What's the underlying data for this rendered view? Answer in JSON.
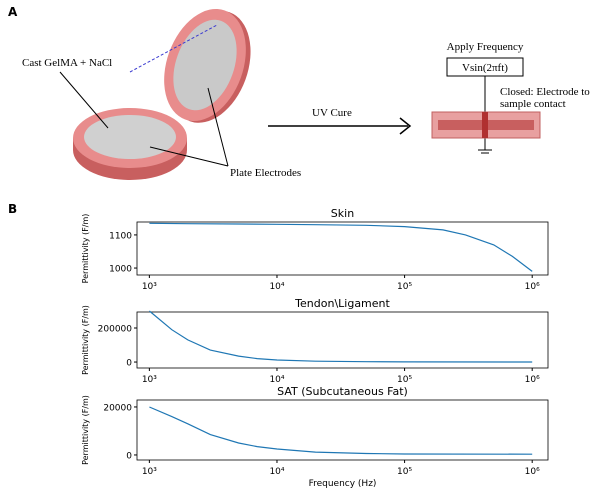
{
  "panel_a": {
    "label": "A",
    "sample_label": "Cast GelMA + NaCl",
    "electrode_label": "Plate Electrodes",
    "process_label": "UV Cure",
    "source_label": "Apply Frequency",
    "source_formula": "Vsin(2πft)",
    "contact_label_lines": [
      "Closed: Electrode to",
      "sample contact"
    ]
  },
  "panel_b": {
    "label": "B"
  },
  "chart_data": [
    {
      "type": "line",
      "title": "Skin",
      "y_label": "Permittivity (F/m)",
      "log_x": true,
      "x": [
        1000,
        2000,
        5000,
        10000,
        20000,
        50000,
        100000,
        200000,
        300000,
        500000,
        700000,
        1000000
      ],
      "series": [
        {
          "color": "#1f77b4",
          "values": [
            1135,
            1134,
            1133,
            1132,
            1131,
            1129,
            1125,
            1115,
            1100,
            1070,
            1035,
            990
          ]
        }
      ],
      "xlim": [
        800,
        1330000
      ],
      "ylim": [
        979,
        1139
      ],
      "xticks": [
        {
          "value": 1000,
          "label": "10³"
        },
        {
          "value": 10000,
          "label": "10⁴"
        },
        {
          "value": 100000,
          "label": "10⁵"
        },
        {
          "value": 1000000,
          "label": "10⁶"
        }
      ],
      "yticks": [
        1000,
        1100
      ]
    },
    {
      "type": "line",
      "title": "Tendon\\Ligament",
      "y_label": "Permittivity (F/m)",
      "log_x": true,
      "x": [
        1000,
        1500,
        2000,
        3000,
        5000,
        7000,
        10000,
        20000,
        50000,
        100000,
        1000000
      ],
      "series": [
        {
          "color": "#1f77b4",
          "values": [
            300000,
            190000,
            130000,
            70000,
            35000,
            20000,
            12000,
            5000,
            2000,
            1000,
            500
          ]
        }
      ],
      "xlim": [
        800,
        1330000
      ],
      "ylim": [
        -35000,
        294000
      ],
      "xticks": [
        {
          "value": 1000,
          "label": "10³"
        },
        {
          "value": 10000,
          "label": "10⁴"
        },
        {
          "value": 100000,
          "label": "10⁵"
        },
        {
          "value": 1000000,
          "label": "10⁶"
        }
      ],
      "yticks": [
        0,
        200000
      ]
    },
    {
      "type": "line",
      "title": "SAT (Subcutaneous Fat)",
      "y_label": "Permittivity (F/m)",
      "x_label": "Frequency (Hz)",
      "log_x": true,
      "x": [
        1000,
        1500,
        2000,
        3000,
        5000,
        7000,
        10000,
        20000,
        50000,
        100000,
        1000000
      ],
      "series": [
        {
          "color": "#1f77b4",
          "values": [
            20000,
            16000,
            13000,
            8500,
            5000,
            3500,
            2500,
            1200,
            600,
            400,
            300
          ]
        }
      ],
      "xlim": [
        800,
        1330000
      ],
      "ylim": [
        -2100,
        22900
      ],
      "xticks": [
        {
          "value": 1000,
          "label": "10³"
        },
        {
          "value": 10000,
          "label": "10⁴"
        },
        {
          "value": 100000,
          "label": "10⁵"
        },
        {
          "value": 1000000,
          "label": "10⁶"
        }
      ],
      "yticks": [
        0,
        20000
      ]
    }
  ]
}
